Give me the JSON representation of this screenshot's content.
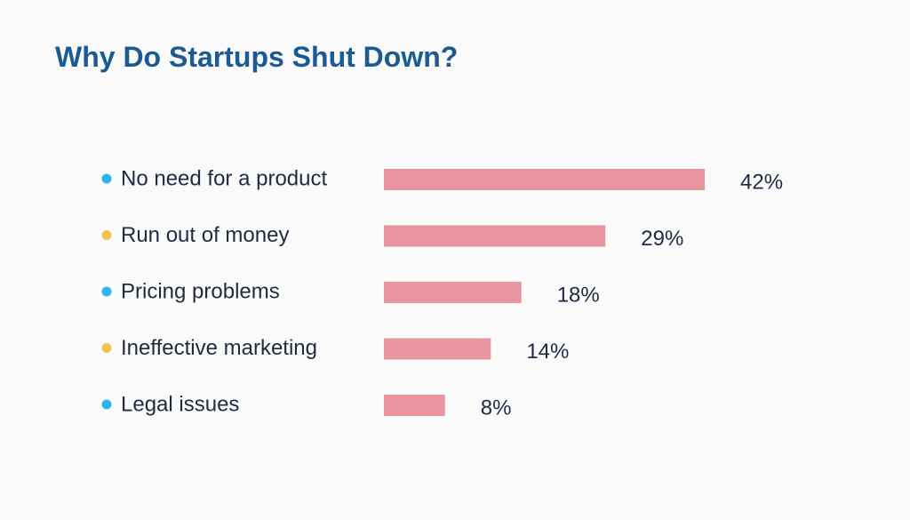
{
  "chart_data": {
    "type": "bar",
    "orientation": "horizontal",
    "title": "Why Do Startups Shut Down?",
    "categories": [
      "No need for a product",
      "Run out of money",
      "Pricing problems",
      "Ineffective marketing",
      "Legal issues"
    ],
    "values": [
      42,
      29,
      18,
      14,
      8
    ],
    "value_labels": [
      "42%",
      "29%",
      "18%",
      "14%",
      "8%"
    ],
    "bullet_colors": [
      "#2eb4ee",
      "#f2c44d",
      "#2eb4ee",
      "#f2c44d",
      "#2eb4ee"
    ],
    "bar_color": "#e8959f",
    "xlim": [
      0,
      42
    ],
    "xlabel": "",
    "ylabel": "",
    "grid": false,
    "legend": "none"
  }
}
